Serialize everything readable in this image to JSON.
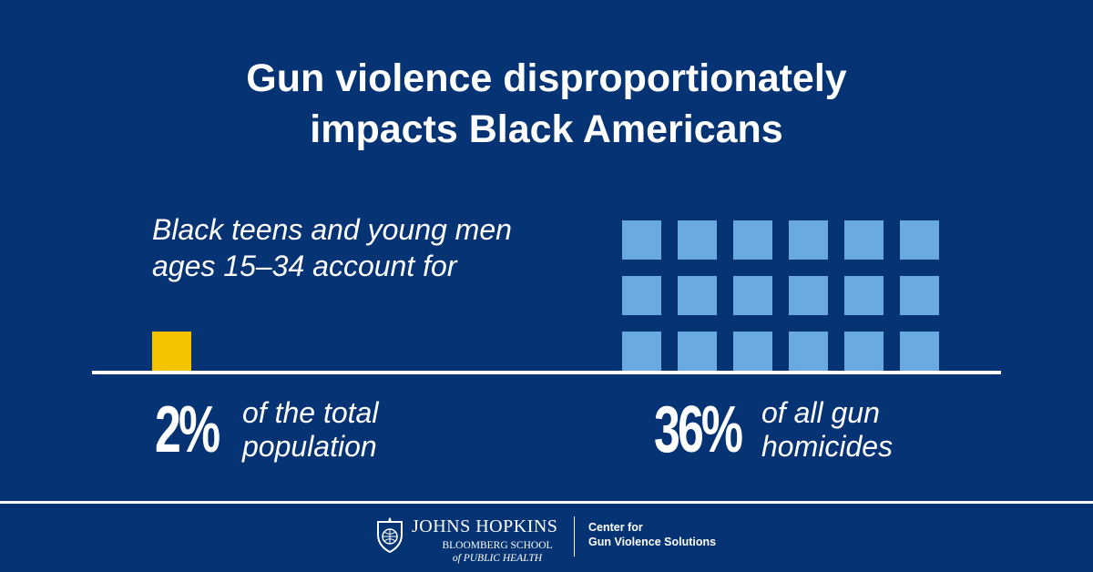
{
  "title": {
    "line1": "Gun violence disproportionately",
    "line2": "impacts Black Americans"
  },
  "intro": {
    "line1": "Black teens and young men",
    "line2": "ages 15–34 account for"
  },
  "colors": {
    "background": "#063373",
    "population_square": "#F5C400",
    "homicide_square": "#69AAE1",
    "baseline": "#FFFFFF"
  },
  "chart_data": {
    "type": "waffle",
    "unit": "each square = 2%",
    "series": [
      {
        "value": 2,
        "squares": 1,
        "label_value": "2%",
        "label_text": [
          "of the total",
          "population"
        ],
        "color": "#F5C400"
      },
      {
        "value": 36,
        "squares": 18,
        "rows": 3,
        "cols": 6,
        "label_value": "36%",
        "label_text": [
          "of all gun",
          "homicides"
        ],
        "color": "#69AAE1"
      }
    ]
  },
  "footer": {
    "institution": "JOHNS HOPKINS",
    "school_line1": "BLOOMBERG SCHOOL",
    "school_line2": "of PUBLIC HEALTH",
    "center_line1": "Center for",
    "center_line2": "Gun Violence Solutions",
    "shield_icon": "jhu-shield-icon"
  }
}
